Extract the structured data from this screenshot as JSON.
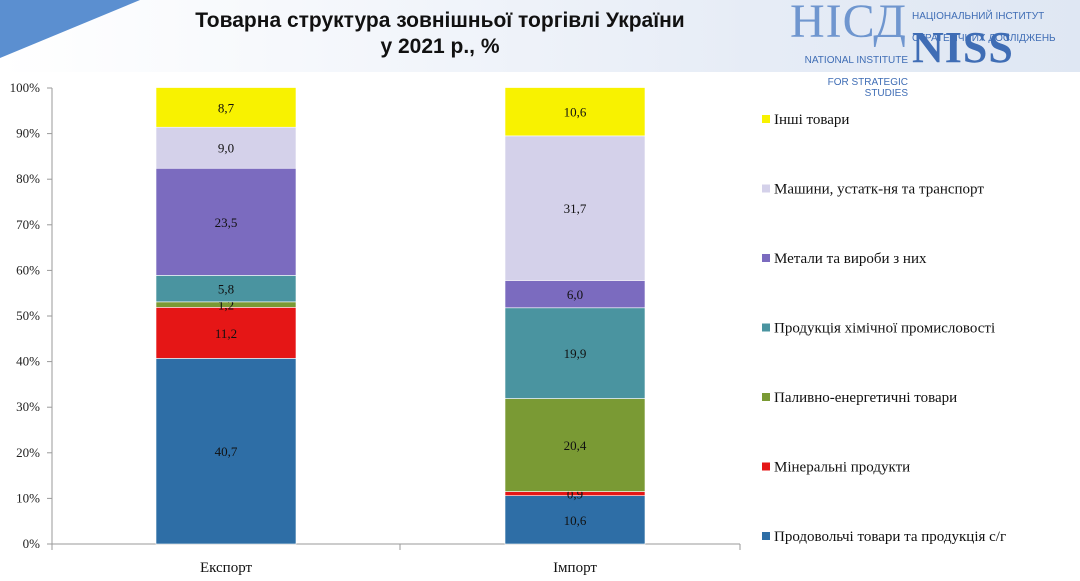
{
  "header": {
    "title_line1": "Товарна структура зовнішньої торгівлі України",
    "title_line2": "у 2021 р., %"
  },
  "logo": {
    "mark_ua": "НІСД",
    "name_ua_line1": "НАЦІОНАЛЬНИЙ ІНСТИТУТ",
    "name_ua_line2": "СТРАТЕГІЧНИХ ДОСЛІДЖЕНЬ",
    "name_en_line1": "NATIONAL INSTITUTE",
    "name_en_line2": "FOR STRATEGIC STUDIES",
    "mark_en": "NISS"
  },
  "chart_data": {
    "type": "bar",
    "stacked": true,
    "percent_stacked": true,
    "categories": [
      "Експорт",
      "Імпорт"
    ],
    "ylim": [
      0,
      100
    ],
    "yticks": [
      "0%",
      "10%",
      "20%",
      "30%",
      "40%",
      "50%",
      "60%",
      "70%",
      "80%",
      "90%",
      "100%"
    ],
    "grid": false,
    "legend_position": "right",
    "series": [
      {
        "name": "Продовольчі товари та продукція с/г",
        "color": "#2e6ea6",
        "values": [
          40.7,
          10.6
        ],
        "labels": [
          "40,7",
          "10,6"
        ]
      },
      {
        "name": "Мінеральні продукти",
        "color": "#e51616",
        "values": [
          11.2,
          0.9
        ],
        "labels": [
          "11,2",
          "0,9"
        ]
      },
      {
        "name": "Паливно-енергетичні товари",
        "color": "#7a9a34",
        "values": [
          1.2,
          20.4
        ],
        "labels": [
          "1,2",
          "20,4"
        ]
      },
      {
        "name": "Продукція хімічної промисловості",
        "color": "#4a94a0",
        "values": [
          5.8,
          19.9
        ],
        "labels": [
          "5,8",
          "19,9"
        ]
      },
      {
        "name": "Метали та вироби з них",
        "color": "#7b6bbf",
        "values": [
          23.5,
          6.0
        ],
        "labels": [
          "23,5",
          "6,0"
        ]
      },
      {
        "name": "Машини, устатк-ня та транспорт",
        "color": "#d4d1ea",
        "values": [
          9.0,
          31.7
        ],
        "labels": [
          "9,0",
          "31,7"
        ]
      },
      {
        "name": "Інші товари",
        "color": "#f8f200",
        "values": [
          8.7,
          10.6
        ],
        "labels": [
          "8,7",
          "10,6"
        ]
      }
    ]
  }
}
